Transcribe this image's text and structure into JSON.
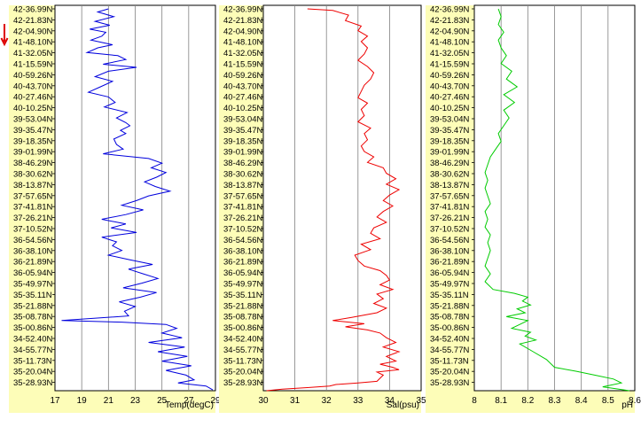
{
  "latitudes": [
    "42-36.99N",
    "42-21.83N",
    "42-04.90N",
    "41-48.10N",
    "41-32.05N",
    "41-15.59N",
    "40-59.26N",
    "40-43.70N",
    "40-27.46N",
    "40-10.25N",
    "39-53.04N",
    "39-35.47N",
    "39-18.35N",
    "39-01.99N",
    "38-46.29N",
    "38-30.62N",
    "38-13.87N",
    "37-57.65N",
    "37-41.81N",
    "37-26.21N",
    "37-10.52N",
    "36-54.56N",
    "36-38.10N",
    "36-21.89N",
    "36-05.94N",
    "35-49.97N",
    "35-35.11N",
    "35-21.88N",
    "35-08.78N",
    "35-00.86N",
    "34-52.40N",
    "34-55.77N",
    "35-11.73N",
    "35-20.04N",
    "35-28.93N"
  ],
  "colors": {
    "panel_bg": "#fdfdb8",
    "frame": "#000000",
    "temp": "#0000dd",
    "sal": "#ee0000",
    "ph": "#00cc00",
    "arrow": "#dd0000",
    "grid": "#808080"
  },
  "chart_data": [
    {
      "type": "line",
      "xlabel": "Temp(degC)",
      "x_ticks": [
        "17",
        "19",
        "21",
        "23",
        "25",
        "27",
        "29"
      ],
      "xlim": [
        17,
        29
      ],
      "grid": "vertical",
      "series": [
        {
          "color": "#0000dd",
          "x": [
            21,
            20.2,
            21.4,
            20,
            21.1,
            19.6,
            20.8,
            20.5,
            19.7,
            21.3,
            20.2,
            19.4,
            21.7,
            22.3,
            20.6,
            23.1,
            21,
            20,
            21.3,
            20.4,
            19.5,
            21,
            21.5,
            20.7,
            22.4,
            21.6,
            22.3,
            22.6,
            21.9,
            22.3,
            21.4,
            21.6,
            22.1,
            20.6,
            24,
            25,
            24.2,
            25.3,
            24.6,
            23.7,
            24.5,
            25.6,
            24,
            23.1,
            22,
            23.6,
            22.3,
            20.5,
            22.3,
            21.2,
            23.1,
            20.5,
            21.6,
            21.3,
            22,
            21,
            22.6,
            24.3,
            22.5,
            23.6,
            24.7,
            23.5,
            22.1,
            24.6,
            23.4,
            21.8,
            23,
            22.2,
            22.5,
            17.5,
            22,
            25.3,
            26.1,
            25,
            26.5,
            24,
            26.7,
            24.7,
            26.9,
            25,
            27.2,
            25.3,
            26.8,
            27.4,
            26.2,
            28.3,
            28.8
          ],
          "y": [
            0,
            0.4,
            1,
            1.6,
            2.1,
            2.6,
            3,
            3.5,
            4,
            4.6,
            5,
            5.6,
            6,
            6.5,
            7.1,
            7.5,
            8,
            8.7,
            9.3,
            10,
            10.7,
            11.3,
            12,
            12.6,
            13.3,
            14,
            14.6,
            15,
            15.6,
            16,
            16.7,
            17.4,
            18,
            18.6,
            19.2,
            19.8,
            20.4,
            21,
            21.6,
            22.2,
            22.8,
            23.4,
            24,
            24.6,
            25.2,
            25.8,
            26.4,
            27,
            27.6,
            28.1,
            28.7,
            29.3,
            29.9,
            30.4,
            31,
            31.6,
            32.2,
            32.8,
            33.4,
            34,
            34.6,
            35.2,
            35.8,
            36.4,
            37,
            37.6,
            38.2,
            38.8,
            39.4,
            40,
            40.2,
            40.5,
            41,
            41.6,
            42.2,
            42.8,
            43.4,
            44,
            44.6,
            45.2,
            45.8,
            46.4,
            47,
            47.6,
            48,
            48.4,
            48.9
          ]
        }
      ]
    },
    {
      "type": "line",
      "xlabel": "Sal(psu)",
      "x_ticks": [
        "30",
        "31",
        "32",
        "33",
        "34",
        "35"
      ],
      "xlim": [
        30,
        35
      ],
      "grid": "vertical",
      "series": [
        {
          "color": "#ee0000",
          "x": [
            31.4,
            32.2,
            32.7,
            32.6,
            33.1,
            33,
            33.3,
            33.1,
            33.3,
            33.2,
            33,
            33.3,
            33.5,
            33.4,
            33.2,
            33.1,
            33,
            33.3,
            33.1,
            33.2,
            33,
            33.4,
            33.2,
            33.3,
            33.1,
            33.2,
            33.5,
            33.3,
            33.8,
            33.9,
            34.2,
            33.9,
            34.3,
            34,
            33.8,
            34.1,
            33.8,
            33.6,
            33.9,
            33.5,
            33.4,
            33.7,
            33.1,
            33.4,
            32.9,
            33,
            33.2,
            33.7,
            33.9,
            34,
            33.7,
            34.1,
            33.6,
            33.8,
            33.5,
            33.9,
            33.6,
            32.8,
            32.2,
            33.2,
            32.6,
            33.3,
            33.7,
            33.9,
            34.2,
            33.8,
            34.3,
            33.9,
            34.2,
            33.7,
            34.1,
            34.3,
            33.6,
            33.8,
            33.7,
            33.6,
            33,
            32.3,
            32.1,
            31.4,
            30.6,
            30.1
          ],
          "y": [
            0,
            0.2,
            0.8,
            1.5,
            2.2,
            2.8,
            3.5,
            4.2,
            5,
            5.8,
            6.6,
            7.4,
            8.2,
            9,
            9.8,
            10.6,
            11.4,
            12.1,
            12.9,
            13.7,
            14.5,
            15.3,
            16,
            16.8,
            17.6,
            18.3,
            19,
            19.7,
            20.4,
            21.1,
            21.8,
            22.5,
            23.2,
            23.9,
            24.6,
            25.3,
            26,
            26.7,
            27.4,
            28.1,
            28.8,
            29.5,
            30.2,
            30.9,
            31.6,
            32.3,
            33,
            33.6,
            34.2,
            34.8,
            35.4,
            36,
            36.6,
            37.2,
            37.8,
            38.4,
            39,
            39.6,
            40,
            40.4,
            40.8,
            41.2,
            41.6,
            42.2,
            42.8,
            43.4,
            44,
            44.6,
            45.2,
            45.6,
            46,
            46.3,
            46.6,
            47,
            47.4,
            47.8,
            48,
            48.2,
            48.4,
            48.6,
            48.8,
            49
          ]
        }
      ]
    },
    {
      "type": "line",
      "xlabel": "pH",
      "x_ticks": [
        "8",
        "8.1",
        "8.2",
        "8.3",
        "8.4",
        "8.5",
        "8.6"
      ],
      "xlim": [
        8,
        8.6
      ],
      "grid": "vertical",
      "series": [
        {
          "color": "#00cc00",
          "x": [
            8.09,
            8.1,
            8.09,
            8.11,
            8.09,
            8.1,
            8.12,
            8.1,
            8.14,
            8.12,
            8.16,
            8.11,
            8.15,
            8.11,
            8.13,
            8.11,
            8.09,
            8.1,
            8.08,
            8.06,
            8.05,
            8.04,
            8.05,
            8.04,
            8.05,
            8.06,
            8.04,
            8.05,
            8.04,
            8.06,
            8.05,
            8.06,
            8.05,
            8.04,
            8.06,
            8.04,
            8.07,
            8.15,
            8.2,
            8.18,
            8.21,
            8.16,
            8.19,
            8.12,
            8.2,
            8.17,
            8.14,
            8.21,
            8.19,
            8.23,
            8.17,
            8.22,
            8.27,
            8.3,
            8.38,
            8.45,
            8.52,
            8.55,
            8.48,
            8.58
          ],
          "y": [
            0,
            1,
            2,
            3,
            4,
            5,
            6,
            7,
            8,
            9,
            10,
            11,
            12,
            13,
            14,
            15,
            16,
            17,
            18,
            19,
            20,
            21,
            22,
            23,
            24,
            25,
            26,
            27,
            28,
            29,
            30,
            31,
            32,
            33,
            34,
            35,
            36,
            36.5,
            37,
            37.5,
            38,
            38.5,
            39,
            39.5,
            40,
            40.5,
            41,
            41.5,
            42,
            42.5,
            43,
            44,
            45,
            46,
            46.5,
            47,
            47.5,
            48,
            48.5,
            49
          ]
        }
      ]
    }
  ]
}
